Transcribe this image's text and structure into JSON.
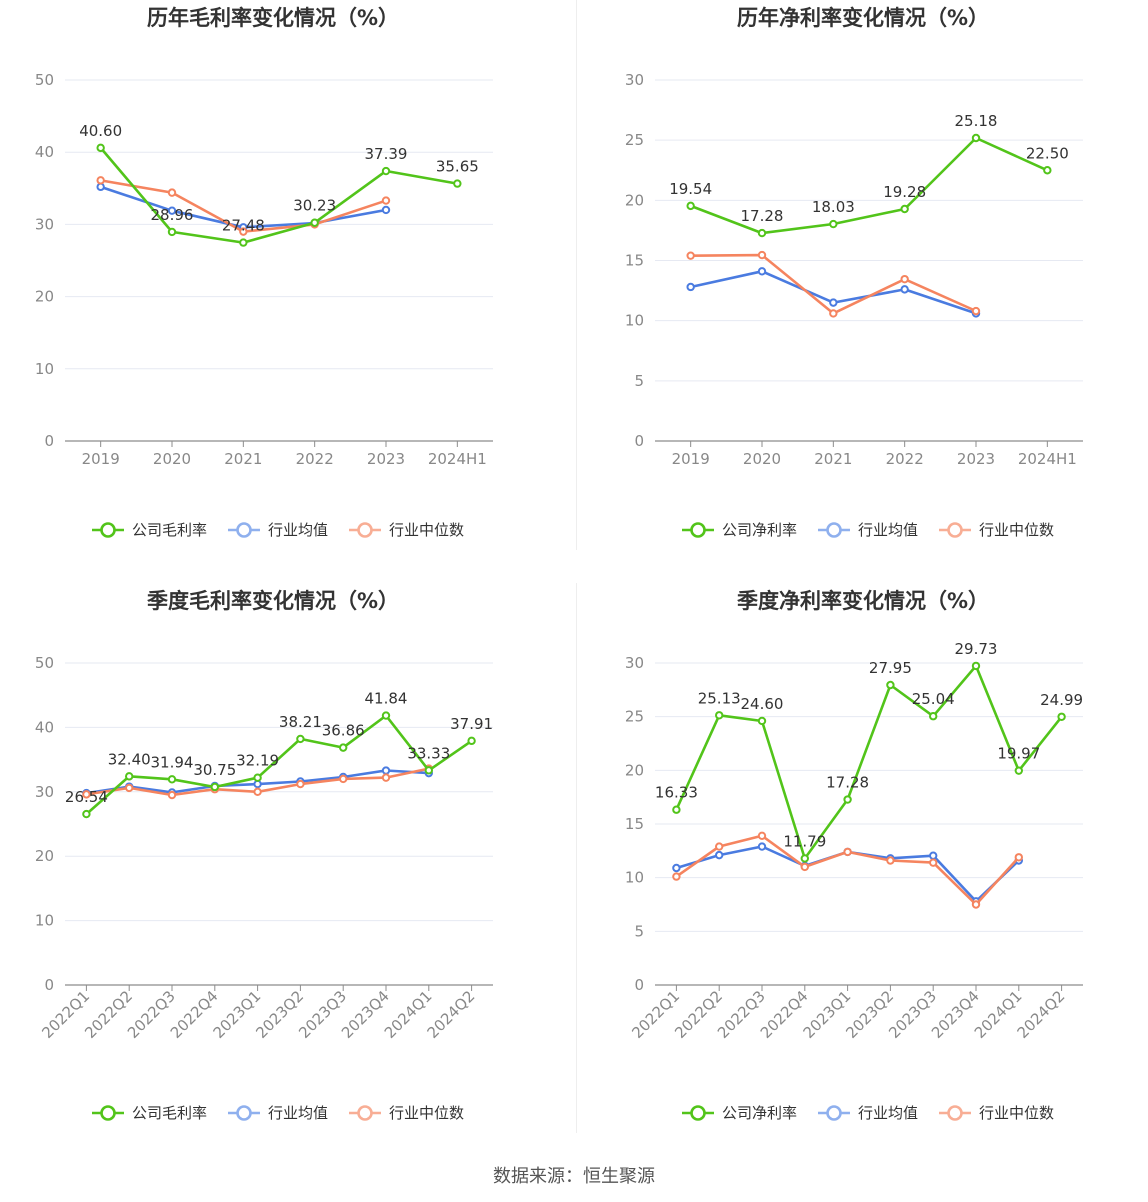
{
  "source": "数据来源：恒生聚源",
  "chart_data": [
    {
      "type": "line",
      "title": "历年毛利率变化情况（%）",
      "categories": [
        "2019",
        "2020",
        "2021",
        "2022",
        "2023",
        "2024H1"
      ],
      "ylim": [
        0,
        50
      ],
      "yticks": [
        0,
        10,
        20,
        30,
        40,
        50
      ],
      "grid": true,
      "rotate_x": false,
      "legend_position": "bottom",
      "series": [
        {
          "name": "公司毛利率",
          "color": "#52c41a",
          "values": [
            40.6,
            28.96,
            27.48,
            30.23,
            37.39,
            35.65
          ],
          "labels": [
            "40.60",
            "28.96",
            "27.48",
            "30.23",
            "37.39",
            "35.65"
          ]
        },
        {
          "name": "行业均值",
          "color": "#4a7be0",
          "values": [
            35.2,
            31.9,
            29.6,
            30.2,
            32.0,
            null
          ]
        },
        {
          "name": "行业中位数",
          "color": "#f5845f",
          "values": [
            36.1,
            34.4,
            29.0,
            30.0,
            33.3,
            null
          ]
        }
      ]
    },
    {
      "type": "line",
      "title": "历年净利率变化情况（%）",
      "categories": [
        "2019",
        "2020",
        "2021",
        "2022",
        "2023",
        "2024H1"
      ],
      "ylim": [
        0,
        30
      ],
      "yticks": [
        0,
        5,
        10,
        15,
        20,
        25,
        30
      ],
      "grid": true,
      "rotate_x": false,
      "legend_position": "bottom",
      "series": [
        {
          "name": "公司净利率",
          "color": "#52c41a",
          "values": [
            19.54,
            17.28,
            18.03,
            19.28,
            25.18,
            22.5
          ],
          "labels": [
            "19.54",
            "17.28",
            "18.03",
            "19.28",
            "25.18",
            "22.50"
          ]
        },
        {
          "name": "行业均值",
          "color": "#4a7be0",
          "values": [
            12.8,
            14.1,
            11.5,
            12.6,
            10.6,
            null
          ]
        },
        {
          "name": "行业中位数",
          "color": "#f5845f",
          "values": [
            15.4,
            15.45,
            10.6,
            13.45,
            10.8,
            null
          ]
        }
      ]
    },
    {
      "type": "line",
      "title": "季度毛利率变化情况（%）",
      "categories": [
        "2022Q1",
        "2022Q2",
        "2022Q3",
        "2022Q4",
        "2023Q1",
        "2023Q2",
        "2023Q3",
        "2023Q4",
        "2024Q1",
        "2024Q2"
      ],
      "ylim": [
        0,
        50
      ],
      "yticks": [
        0,
        10,
        20,
        30,
        40,
        50
      ],
      "grid": true,
      "rotate_x": true,
      "legend_position": "bottom",
      "series": [
        {
          "name": "公司毛利率",
          "color": "#52c41a",
          "values": [
            26.54,
            32.4,
            31.94,
            30.75,
            32.19,
            38.21,
            36.86,
            41.84,
            33.33,
            37.91
          ],
          "labels": [
            "26.54",
            "32.40",
            "31.94",
            "30.75",
            "32.19",
            "38.21",
            "36.86",
            "41.84",
            "33.33",
            "37.91"
          ]
        },
        {
          "name": "行业均值",
          "color": "#4a7be0",
          "values": [
            29.8,
            30.8,
            29.9,
            30.9,
            31.2,
            31.6,
            32.3,
            33.3,
            32.9,
            null
          ]
        },
        {
          "name": "行业中位数",
          "color": "#f5845f",
          "values": [
            29.6,
            30.6,
            29.5,
            30.4,
            30.0,
            31.2,
            32.0,
            32.2,
            33.6,
            null
          ]
        }
      ]
    },
    {
      "type": "line",
      "title": "季度净利率变化情况（%）",
      "categories": [
        "2022Q1",
        "2022Q2",
        "2022Q3",
        "2022Q4",
        "2023Q1",
        "2023Q2",
        "2023Q3",
        "2023Q4",
        "2024Q1",
        "2024Q2"
      ],
      "ylim": [
        0,
        30
      ],
      "yticks": [
        0,
        5,
        10,
        15,
        20,
        25,
        30
      ],
      "grid": true,
      "rotate_x": true,
      "legend_position": "bottom",
      "series": [
        {
          "name": "公司净利率",
          "color": "#52c41a",
          "values": [
            16.33,
            25.13,
            24.6,
            11.79,
            17.28,
            27.95,
            25.04,
            29.73,
            19.97,
            24.99
          ],
          "labels": [
            "16.33",
            "25.13",
            "24.60",
            "11.79",
            "17.28",
            "27.95",
            "25.04",
            "29.73",
            "19.97",
            "24.99"
          ]
        },
        {
          "name": "行业均值",
          "color": "#4a7be0",
          "values": [
            10.9,
            12.1,
            12.9,
            11.1,
            12.4,
            11.8,
            12.05,
            7.8,
            11.6,
            null
          ]
        },
        {
          "name": "行业中位数",
          "color": "#f5845f",
          "values": [
            10.1,
            12.9,
            13.9,
            11.0,
            12.4,
            11.6,
            11.4,
            7.5,
            11.9,
            null
          ]
        }
      ]
    }
  ]
}
